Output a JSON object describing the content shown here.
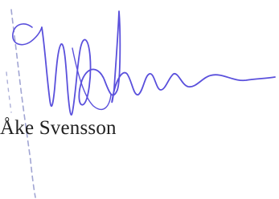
{
  "signature": {
    "name": "Åke Svensson"
  }
}
